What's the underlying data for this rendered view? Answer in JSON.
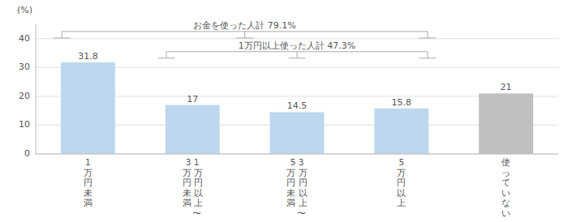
{
  "chart_data": {
    "type": "bar",
    "categories": [
      "1\n万\n円\n未\n満",
      "3 1\n万 万\n円 円\n未 以\n満 上\n　〜",
      "5 3\n万 万\n円 円\n未 以\n満 上\n　〜",
      "5\n万\n円\n以\n上",
      "使\nっ\nて\nい\nな\nい"
    ],
    "values": [
      31.8,
      17.0,
      14.5,
      15.8,
      21.0
    ],
    "colors": [
      "#bdd7ee",
      "#bdd7ee",
      "#bdd7ee",
      "#bdd7ee",
      "#c0c0c0"
    ],
    "y_label": "(%)",
    "ylim": [
      0,
      45
    ],
    "yticks": [
      0,
      10,
      20,
      30,
      40
    ],
    "grid": true,
    "data_labels": true,
    "annotations": [
      {
        "text": "お金を使った人計 79.1%",
        "span": [
          0,
          3
        ],
        "y": 42.5
      },
      {
        "text": "1万円以上使った人計 47.3%",
        "span": [
          1,
          3
        ],
        "y": 35.5
      }
    ]
  }
}
